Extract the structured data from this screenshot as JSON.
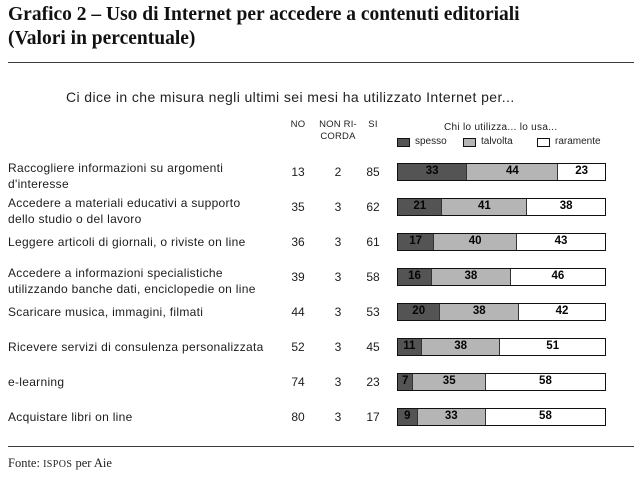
{
  "chart_data": {
    "type": "bar",
    "orientation": "horizontal",
    "stacked": true,
    "title": "Grafico 2 – Uso di Internet per accedere a contenuti editoriali",
    "subtitle": "(Valori in percentuale)",
    "question": "Ci dice in che misura negli ultimi sei mesi ha utilizzato Internet per...",
    "categories": [
      "Raccogliere informazioni su argomenti\nd'interesse",
      "Accedere a materiali educativi a supporto\ndello studio o del lavoro",
      "Leggere articoli di giornali, o riviste on line",
      "Accedere a informazioni specialistiche\nutilizzando banche dati, enciclopedie on line",
      "Scaricare musica, immagini, filmati",
      "Ricevere servizi di consulenza personalizzata",
      "e-learning",
      "Acquistare libri on line"
    ],
    "table_columns": [
      {
        "header": "NO",
        "values": [
          13,
          35,
          36,
          39,
          44,
          52,
          74,
          80
        ]
      },
      {
        "header": "NON RI-\nCORDA",
        "values": [
          2,
          3,
          3,
          3,
          3,
          3,
          3,
          3
        ]
      },
      {
        "header": "SI",
        "values": [
          85,
          62,
          61,
          58,
          53,
          45,
          23,
          17
        ]
      }
    ],
    "legend_title": "Chi lo utilizza... lo usa...",
    "legend_position": "top",
    "series": [
      {
        "name": "spesso",
        "color": "#545454",
        "values": [
          33,
          21,
          17,
          16,
          20,
          11,
          7,
          9
        ]
      },
      {
        "name": "talvolta",
        "color": "#b5b5b5",
        "values": [
          44,
          41,
          40,
          38,
          38,
          38,
          35,
          33
        ]
      },
      {
        "name": "raramente",
        "color": "#ffffff",
        "values": [
          23,
          38,
          43,
          46,
          42,
          51,
          58,
          58
        ]
      }
    ],
    "xlim": [
      0,
      100
    ],
    "grid": false,
    "data_labels": true
  },
  "source": {
    "label": "Fonte:",
    "org": "ISPOS",
    "rest": "per Aie"
  }
}
